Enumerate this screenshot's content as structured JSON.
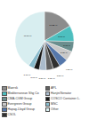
{
  "chart_data": {
    "type": "pie",
    "categories": [
      "Maersk",
      "Mediterranean Shg Co",
      "CMA-CGM Group",
      "Evergreen Group",
      "Hapag-Lloyd Group",
      "CSOL",
      "APL",
      "Hanjin/Senator",
      "COSCO Container L.",
      "MSC",
      "Other"
    ],
    "values": [
      16.25,
      8.6,
      5.6,
      5.2,
      4.8,
      3.8,
      3.8,
      3.8,
      3.0,
      3.0,
      40.1
    ],
    "value_labels": [
      "16.25 %",
      "8.60 %",
      "5.60 %",
      "5.20 %",
      "4.80 %",
      "3.80 %",
      "3.80 %",
      "3.80 %",
      "3.00 %",
      "3.00 %",
      "40.10 %"
    ],
    "colors": [
      "#8c8c8c",
      "#4dbfbf",
      "#6b8e8e",
      "#c8c8c8",
      "#5577aa",
      "#303030",
      "#606060",
      "#aabbcc",
      "#181818",
      "#88bbcc",
      "#d8eef0"
    ],
    "data_labels": true,
    "legend": "bottom"
  }
}
